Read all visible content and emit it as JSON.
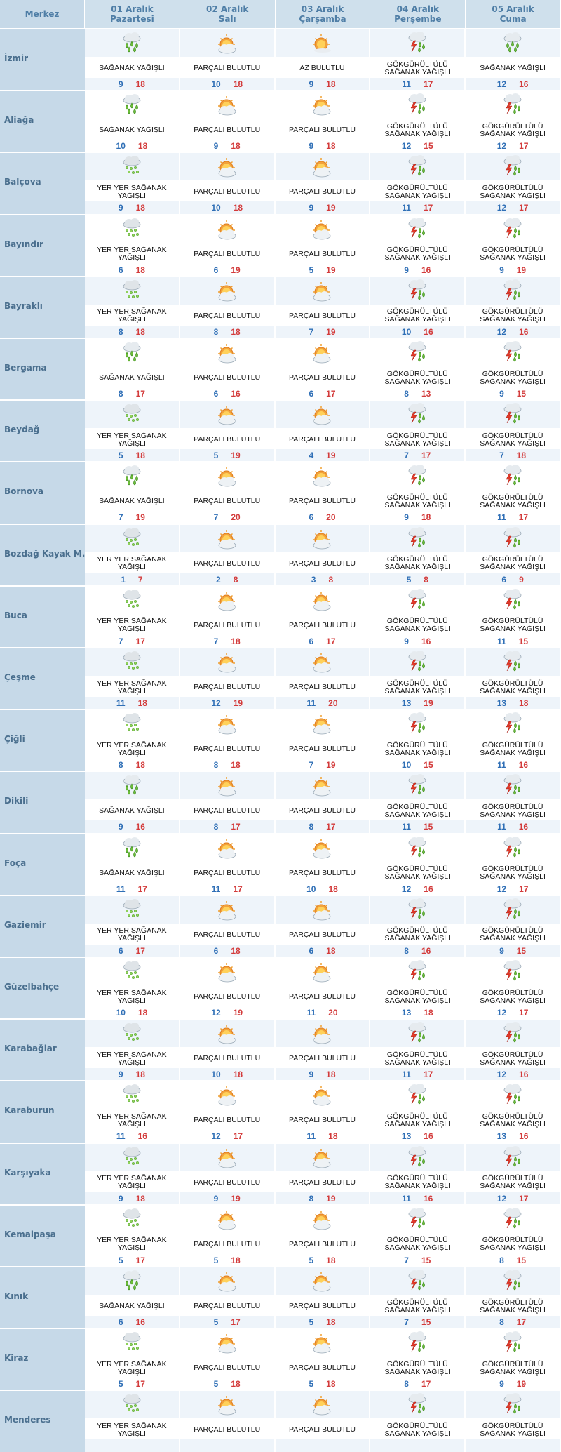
{
  "header": {
    "city_label": "Merkez",
    "days": [
      {
        "date": "01 Aralık",
        "weekday": "Pazartesi"
      },
      {
        "date": "02 Aralık",
        "weekday": "Salı"
      },
      {
        "date": "03 Aralık",
        "weekday": "Çarşamba"
      },
      {
        "date": "04 Aralık",
        "weekday": "Perşembe"
      },
      {
        "date": "05 Aralık",
        "weekday": "Cuma"
      }
    ]
  },
  "colors": {
    "header_bg": "#cfe0ec",
    "city_bg": "#c6d9e8",
    "row_bg": "#ffffff",
    "row_bg_alt": "#eef4fa",
    "min_temp": "#2f6fb6",
    "max_temp": "#d33b3b"
  },
  "rows": [
    {
      "city": "İzmir",
      "days": [
        {
          "icon": "rain-shower-icon",
          "desc": "SAĞANAK YAĞIŞLI",
          "min": 9,
          "max": 18
        },
        {
          "icon": "partly-cloudy-icon",
          "desc": "PARÇALI BULUTLU",
          "min": 10,
          "max": 18
        },
        {
          "icon": "sun-icon",
          "desc": "AZ BULUTLU",
          "min": 9,
          "max": 18
        },
        {
          "icon": "thunderstorm-icon",
          "desc": "GÖKGÜRÜLTÜLÜ SAĞANAK YAĞIŞLI",
          "min": 11,
          "max": 17
        },
        {
          "icon": "rain-shower-icon",
          "desc": "SAĞANAK YAĞIŞLI",
          "min": 12,
          "max": 16
        }
      ]
    },
    {
      "city": "Aliağa",
      "days": [
        {
          "icon": "rain-shower-icon",
          "desc": "SAĞANAK YAĞIŞLI",
          "min": 10,
          "max": 18
        },
        {
          "icon": "partly-cloudy-icon",
          "desc": "PARÇALI BULUTLU",
          "min": 9,
          "max": 18
        },
        {
          "icon": "partly-cloudy-icon",
          "desc": "PARÇALI BULUTLU",
          "min": 9,
          "max": 18
        },
        {
          "icon": "thunderstorm-icon",
          "desc": "GÖKGÜRÜLTÜLÜ SAĞANAK YAĞIŞLI",
          "min": 12,
          "max": 15
        },
        {
          "icon": "thunderstorm-icon",
          "desc": "GÖKGÜRÜLTÜLÜ SAĞANAK YAĞIŞLI",
          "min": 12,
          "max": 17
        }
      ]
    },
    {
      "city": "Balçova",
      "days": [
        {
          "icon": "scattered-showers-icon",
          "desc": "YER YER SAĞANAK YAĞIŞLI",
          "min": 9,
          "max": 18
        },
        {
          "icon": "partly-cloudy-icon",
          "desc": "PARÇALI BULUTLU",
          "min": 10,
          "max": 18
        },
        {
          "icon": "partly-cloudy-icon",
          "desc": "PARÇALI BULUTLU",
          "min": 9,
          "max": 19
        },
        {
          "icon": "thunderstorm-icon",
          "desc": "GÖKGÜRÜLTÜLÜ SAĞANAK YAĞIŞLI",
          "min": 11,
          "max": 17
        },
        {
          "icon": "thunderstorm-icon",
          "desc": "GÖKGÜRÜLTÜLÜ SAĞANAK YAĞIŞLI",
          "min": 12,
          "max": 17
        }
      ]
    },
    {
      "city": "Bayındır",
      "days": [
        {
          "icon": "scattered-showers-icon",
          "desc": "YER YER SAĞANAK YAĞIŞLI",
          "min": 6,
          "max": 18
        },
        {
          "icon": "partly-cloudy-icon",
          "desc": "PARÇALI BULUTLU",
          "min": 6,
          "max": 19
        },
        {
          "icon": "partly-cloudy-icon",
          "desc": "PARÇALI BULUTLU",
          "min": 5,
          "max": 19
        },
        {
          "icon": "thunderstorm-icon",
          "desc": "GÖKGÜRÜLTÜLÜ SAĞANAK YAĞIŞLI",
          "min": 9,
          "max": 16
        },
        {
          "icon": "thunderstorm-icon",
          "desc": "GÖKGÜRÜLTÜLÜ SAĞANAK YAĞIŞLI",
          "min": 9,
          "max": 19
        }
      ]
    },
    {
      "city": "Bayraklı",
      "days": [
        {
          "icon": "scattered-showers-icon",
          "desc": "YER YER SAĞANAK YAĞIŞLI",
          "min": 8,
          "max": 18
        },
        {
          "icon": "partly-cloudy-icon",
          "desc": "PARÇALI BULUTLU",
          "min": 8,
          "max": 18
        },
        {
          "icon": "partly-cloudy-icon",
          "desc": "PARÇALI BULUTLU",
          "min": 7,
          "max": 19
        },
        {
          "icon": "thunderstorm-icon",
          "desc": "GÖKGÜRÜLTÜLÜ SAĞANAK YAĞIŞLI",
          "min": 10,
          "max": 16
        },
        {
          "icon": "thunderstorm-icon",
          "desc": "GÖKGÜRÜLTÜLÜ SAĞANAK YAĞIŞLI",
          "min": 12,
          "max": 16
        }
      ]
    },
    {
      "city": "Bergama",
      "days": [
        {
          "icon": "rain-shower-icon",
          "desc": "SAĞANAK YAĞIŞLI",
          "min": 8,
          "max": 17
        },
        {
          "icon": "partly-cloudy-icon",
          "desc": "PARÇALI BULUTLU",
          "min": 6,
          "max": 16
        },
        {
          "icon": "partly-cloudy-icon",
          "desc": "PARÇALI BULUTLU",
          "min": 6,
          "max": 17
        },
        {
          "icon": "thunderstorm-icon",
          "desc": "GÖKGÜRÜLTÜLÜ SAĞANAK YAĞIŞLI",
          "min": 8,
          "max": 13
        },
        {
          "icon": "thunderstorm-icon",
          "desc": "GÖKGÜRÜLTÜLÜ SAĞANAK YAĞIŞLI",
          "min": 9,
          "max": 15
        }
      ]
    },
    {
      "city": "Beydağ",
      "days": [
        {
          "icon": "scattered-showers-icon",
          "desc": "YER YER SAĞANAK YAĞIŞLI",
          "min": 5,
          "max": 18
        },
        {
          "icon": "partly-cloudy-icon",
          "desc": "PARÇALI BULUTLU",
          "min": 5,
          "max": 19
        },
        {
          "icon": "partly-cloudy-icon",
          "desc": "PARÇALI BULUTLU",
          "min": 4,
          "max": 19
        },
        {
          "icon": "thunderstorm-icon",
          "desc": "GÖKGÜRÜLTÜLÜ SAĞANAK YAĞIŞLI",
          "min": 7,
          "max": 17
        },
        {
          "icon": "thunderstorm-icon",
          "desc": "GÖKGÜRÜLTÜLÜ SAĞANAK YAĞIŞLI",
          "min": 7,
          "max": 18
        }
      ]
    },
    {
      "city": "Bornova",
      "days": [
        {
          "icon": "rain-shower-icon",
          "desc": "SAĞANAK YAĞIŞLI",
          "min": 7,
          "max": 19
        },
        {
          "icon": "partly-cloudy-icon",
          "desc": "PARÇALI BULUTLU",
          "min": 7,
          "max": 20
        },
        {
          "icon": "partly-cloudy-icon",
          "desc": "PARÇALI BULUTLU",
          "min": 6,
          "max": 20
        },
        {
          "icon": "thunderstorm-icon",
          "desc": "GÖKGÜRÜLTÜLÜ SAĞANAK YAĞIŞLI",
          "min": 9,
          "max": 18
        },
        {
          "icon": "thunderstorm-icon",
          "desc": "GÖKGÜRÜLTÜLÜ SAĞANAK YAĞIŞLI",
          "min": 11,
          "max": 17
        }
      ]
    },
    {
      "city": "Bozdağ Kayak M.",
      "days": [
        {
          "icon": "scattered-showers-icon",
          "desc": "YER YER SAĞANAK YAĞIŞLI",
          "min": 1,
          "max": 7
        },
        {
          "icon": "partly-cloudy-icon",
          "desc": "PARÇALI BULUTLU",
          "min": 2,
          "max": 8
        },
        {
          "icon": "partly-cloudy-icon",
          "desc": "PARÇALI BULUTLU",
          "min": 3,
          "max": 8
        },
        {
          "icon": "thunderstorm-icon",
          "desc": "GÖKGÜRÜLTÜLÜ SAĞANAK YAĞIŞLI",
          "min": 5,
          "max": 8
        },
        {
          "icon": "thunderstorm-icon",
          "desc": "GÖKGÜRÜLTÜLÜ SAĞANAK YAĞIŞLI",
          "min": 6,
          "max": 9
        }
      ]
    },
    {
      "city": "Buca",
      "days": [
        {
          "icon": "scattered-showers-icon",
          "desc": "YER YER SAĞANAK YAĞIŞLI",
          "min": 7,
          "max": 17
        },
        {
          "icon": "partly-cloudy-icon",
          "desc": "PARÇALI BULUTLU",
          "min": 7,
          "max": 18
        },
        {
          "icon": "partly-cloudy-icon",
          "desc": "PARÇALI BULUTLU",
          "min": 6,
          "max": 17
        },
        {
          "icon": "thunderstorm-icon",
          "desc": "GÖKGÜRÜLTÜLÜ SAĞANAK YAĞIŞLI",
          "min": 9,
          "max": 16
        },
        {
          "icon": "thunderstorm-icon",
          "desc": "GÖKGÜRÜLTÜLÜ SAĞANAK YAĞIŞLI",
          "min": 11,
          "max": 15
        }
      ]
    },
    {
      "city": "Çeşme",
      "days": [
        {
          "icon": "scattered-showers-icon",
          "desc": "YER YER SAĞANAK YAĞIŞLI",
          "min": 11,
          "max": 18
        },
        {
          "icon": "partly-cloudy-icon",
          "desc": "PARÇALI BULUTLU",
          "min": 12,
          "max": 19
        },
        {
          "icon": "partly-cloudy-icon",
          "desc": "PARÇALI BULUTLU",
          "min": 11,
          "max": 20
        },
        {
          "icon": "thunderstorm-icon",
          "desc": "GÖKGÜRÜLTÜLÜ SAĞANAK YAĞIŞLI",
          "min": 13,
          "max": 19
        },
        {
          "icon": "thunderstorm-icon",
          "desc": "GÖKGÜRÜLTÜLÜ SAĞANAK YAĞIŞLI",
          "min": 13,
          "max": 18
        }
      ]
    },
    {
      "city": "Çiğli",
      "days": [
        {
          "icon": "scattered-showers-icon",
          "desc": "YER YER SAĞANAK YAĞIŞLI",
          "min": 8,
          "max": 18
        },
        {
          "icon": "partly-cloudy-icon",
          "desc": "PARÇALI BULUTLU",
          "min": 8,
          "max": 18
        },
        {
          "icon": "partly-cloudy-icon",
          "desc": "PARÇALI BULUTLU",
          "min": 7,
          "max": 19
        },
        {
          "icon": "thunderstorm-icon",
          "desc": "GÖKGÜRÜLTÜLÜ SAĞANAK YAĞIŞLI",
          "min": 10,
          "max": 15
        },
        {
          "icon": "thunderstorm-icon",
          "desc": "GÖKGÜRÜLTÜLÜ SAĞANAK YAĞIŞLI",
          "min": 11,
          "max": 16
        }
      ]
    },
    {
      "city": "Dikili",
      "days": [
        {
          "icon": "rain-shower-icon",
          "desc": "SAĞANAK YAĞIŞLI",
          "min": 9,
          "max": 16
        },
        {
          "icon": "partly-cloudy-icon",
          "desc": "PARÇALI BULUTLU",
          "min": 8,
          "max": 17
        },
        {
          "icon": "partly-cloudy-icon",
          "desc": "PARÇALI BULUTLU",
          "min": 8,
          "max": 17
        },
        {
          "icon": "thunderstorm-icon",
          "desc": "GÖKGÜRÜLTÜLÜ SAĞANAK YAĞIŞLI",
          "min": 11,
          "max": 15
        },
        {
          "icon": "thunderstorm-icon",
          "desc": "GÖKGÜRÜLTÜLÜ SAĞANAK YAĞIŞLI",
          "min": 11,
          "max": 16
        }
      ]
    },
    {
      "city": "Foça",
      "days": [
        {
          "icon": "rain-shower-icon",
          "desc": "SAĞANAK YAĞIŞLI",
          "min": 11,
          "max": 17
        },
        {
          "icon": "partly-cloudy-icon",
          "desc": "PARÇALI BULUTLU",
          "min": 11,
          "max": 17
        },
        {
          "icon": "partly-cloudy-icon",
          "desc": "PARÇALI BULUTLU",
          "min": 10,
          "max": 18
        },
        {
          "icon": "thunderstorm-icon",
          "desc": "GÖKGÜRÜLTÜLÜ SAĞANAK YAĞIŞLI",
          "min": 12,
          "max": 16
        },
        {
          "icon": "thunderstorm-icon",
          "desc": "GÖKGÜRÜLTÜLÜ SAĞANAK YAĞIŞLI",
          "min": 12,
          "max": 17
        }
      ]
    },
    {
      "city": "Gaziemir",
      "days": [
        {
          "icon": "scattered-showers-icon",
          "desc": "YER YER SAĞANAK YAĞIŞLI",
          "min": 6,
          "max": 17
        },
        {
          "icon": "partly-cloudy-icon",
          "desc": "PARÇALI BULUTLU",
          "min": 6,
          "max": 18
        },
        {
          "icon": "partly-cloudy-icon",
          "desc": "PARÇALI BULUTLU",
          "min": 6,
          "max": 18
        },
        {
          "icon": "thunderstorm-icon",
          "desc": "GÖKGÜRÜLTÜLÜ SAĞANAK YAĞIŞLI",
          "min": 8,
          "max": 16
        },
        {
          "icon": "thunderstorm-icon",
          "desc": "GÖKGÜRÜLTÜLÜ SAĞANAK YAĞIŞLI",
          "min": 9,
          "max": 15
        }
      ]
    },
    {
      "city": "Güzelbahçe",
      "days": [
        {
          "icon": "scattered-showers-icon",
          "desc": "YER YER SAĞANAK YAĞIŞLI",
          "min": 10,
          "max": 18
        },
        {
          "icon": "partly-cloudy-icon",
          "desc": "PARÇALI BULUTLU",
          "min": 12,
          "max": 19
        },
        {
          "icon": "partly-cloudy-icon",
          "desc": "PARÇALI BULUTLU",
          "min": 11,
          "max": 20
        },
        {
          "icon": "thunderstorm-icon",
          "desc": "GÖKGÜRÜLTÜLÜ SAĞANAK YAĞIŞLI",
          "min": 13,
          "max": 18
        },
        {
          "icon": "thunderstorm-icon",
          "desc": "GÖKGÜRÜLTÜLÜ SAĞANAK YAĞIŞLI",
          "min": 12,
          "max": 17
        }
      ]
    },
    {
      "city": "Karabağlar",
      "days": [
        {
          "icon": "scattered-showers-icon",
          "desc": "YER YER SAĞANAK YAĞIŞLI",
          "min": 9,
          "max": 18
        },
        {
          "icon": "partly-cloudy-icon",
          "desc": "PARÇALI BULUTLU",
          "min": 10,
          "max": 18
        },
        {
          "icon": "partly-cloudy-icon",
          "desc": "PARÇALI BULUTLU",
          "min": 9,
          "max": 18
        },
        {
          "icon": "thunderstorm-icon",
          "desc": "GÖKGÜRÜLTÜLÜ SAĞANAK YAĞIŞLI",
          "min": 11,
          "max": 17
        },
        {
          "icon": "thunderstorm-icon",
          "desc": "GÖKGÜRÜLTÜLÜ SAĞANAK YAĞIŞLI",
          "min": 12,
          "max": 16
        }
      ]
    },
    {
      "city": "Karaburun",
      "days": [
        {
          "icon": "scattered-showers-icon",
          "desc": "YER YER SAĞANAK YAĞIŞLI",
          "min": 11,
          "max": 16
        },
        {
          "icon": "partly-cloudy-icon",
          "desc": "PARÇALI BULUTLU",
          "min": 12,
          "max": 17
        },
        {
          "icon": "partly-cloudy-icon",
          "desc": "PARÇALI BULUTLU",
          "min": 11,
          "max": 18
        },
        {
          "icon": "thunderstorm-icon",
          "desc": "GÖKGÜRÜLTÜLÜ SAĞANAK YAĞIŞLI",
          "min": 13,
          "max": 16
        },
        {
          "icon": "thunderstorm-icon",
          "desc": "GÖKGÜRÜLTÜLÜ SAĞANAK YAĞIŞLI",
          "min": 13,
          "max": 16
        }
      ]
    },
    {
      "city": "Karşıyaka",
      "days": [
        {
          "icon": "scattered-showers-icon",
          "desc": "YER YER SAĞANAK YAĞIŞLI",
          "min": 9,
          "max": 18
        },
        {
          "icon": "partly-cloudy-icon",
          "desc": "PARÇALI BULUTLU",
          "min": 9,
          "max": 19
        },
        {
          "icon": "partly-cloudy-icon",
          "desc": "PARÇALI BULUTLU",
          "min": 8,
          "max": 19
        },
        {
          "icon": "thunderstorm-icon",
          "desc": "GÖKGÜRÜLTÜLÜ SAĞANAK YAĞIŞLI",
          "min": 11,
          "max": 16
        },
        {
          "icon": "thunderstorm-icon",
          "desc": "GÖKGÜRÜLTÜLÜ SAĞANAK YAĞIŞLI",
          "min": 12,
          "max": 17
        }
      ]
    },
    {
      "city": "Kemalpaşa",
      "days": [
        {
          "icon": "scattered-showers-icon",
          "desc": "YER YER SAĞANAK YAĞIŞLI",
          "min": 5,
          "max": 17
        },
        {
          "icon": "partly-cloudy-icon",
          "desc": "PARÇALI BULUTLU",
          "min": 5,
          "max": 18
        },
        {
          "icon": "partly-cloudy-icon",
          "desc": "PARÇALI BULUTLU",
          "min": 5,
          "max": 18
        },
        {
          "icon": "thunderstorm-icon",
          "desc": "GÖKGÜRÜLTÜLÜ SAĞANAK YAĞIŞLI",
          "min": 7,
          "max": 15
        },
        {
          "icon": "thunderstorm-icon",
          "desc": "GÖKGÜRÜLTÜLÜ SAĞANAK YAĞIŞLI",
          "min": 8,
          "max": 15
        }
      ]
    },
    {
      "city": "Kınık",
      "days": [
        {
          "icon": "rain-shower-icon",
          "desc": "SAĞANAK YAĞIŞLI",
          "min": 6,
          "max": 16
        },
        {
          "icon": "partly-cloudy-icon",
          "desc": "PARÇALI BULUTLU",
          "min": 5,
          "max": 17
        },
        {
          "icon": "partly-cloudy-icon",
          "desc": "PARÇALI BULUTLU",
          "min": 5,
          "max": 18
        },
        {
          "icon": "thunderstorm-icon",
          "desc": "GÖKGÜRÜLTÜLÜ SAĞANAK YAĞIŞLI",
          "min": 7,
          "max": 15
        },
        {
          "icon": "thunderstorm-icon",
          "desc": "GÖKGÜRÜLTÜLÜ SAĞANAK YAĞIŞLI",
          "min": 8,
          "max": 17
        }
      ]
    },
    {
      "city": "Kiraz",
      "days": [
        {
          "icon": "scattered-showers-icon",
          "desc": "YER YER SAĞANAK YAĞIŞLI",
          "min": 5,
          "max": 17
        },
        {
          "icon": "partly-cloudy-icon",
          "desc": "PARÇALI BULUTLU",
          "min": 5,
          "max": 18
        },
        {
          "icon": "partly-cloudy-icon",
          "desc": "PARÇALI BULUTLU",
          "min": 5,
          "max": 18
        },
        {
          "icon": "thunderstorm-icon",
          "desc": "GÖKGÜRÜLTÜLÜ SAĞANAK YAĞIŞLI",
          "min": 8,
          "max": 17
        },
        {
          "icon": "thunderstorm-icon",
          "desc": "GÖKGÜRÜLTÜLÜ SAĞANAK YAĞIŞLI",
          "min": 9,
          "max": 19
        }
      ]
    },
    {
      "city": "Menderes",
      "days": [
        {
          "icon": "scattered-showers-icon",
          "desc": "YER YER SAĞANAK YAĞIŞLI"
        },
        {
          "icon": "partly-cloudy-icon",
          "desc": "PARÇALI BULUTLU"
        },
        {
          "icon": "partly-cloudy-icon",
          "desc": "PARÇALI BULUTLU"
        },
        {
          "icon": "thunderstorm-icon",
          "desc": "GÖKGÜRÜLTÜLÜ SAĞANAK YAĞIŞLI"
        },
        {
          "icon": "thunderstorm-icon",
          "desc": "GÖKGÜRÜLTÜLÜ SAĞANAK YAĞIŞLI"
        }
      ]
    }
  ]
}
